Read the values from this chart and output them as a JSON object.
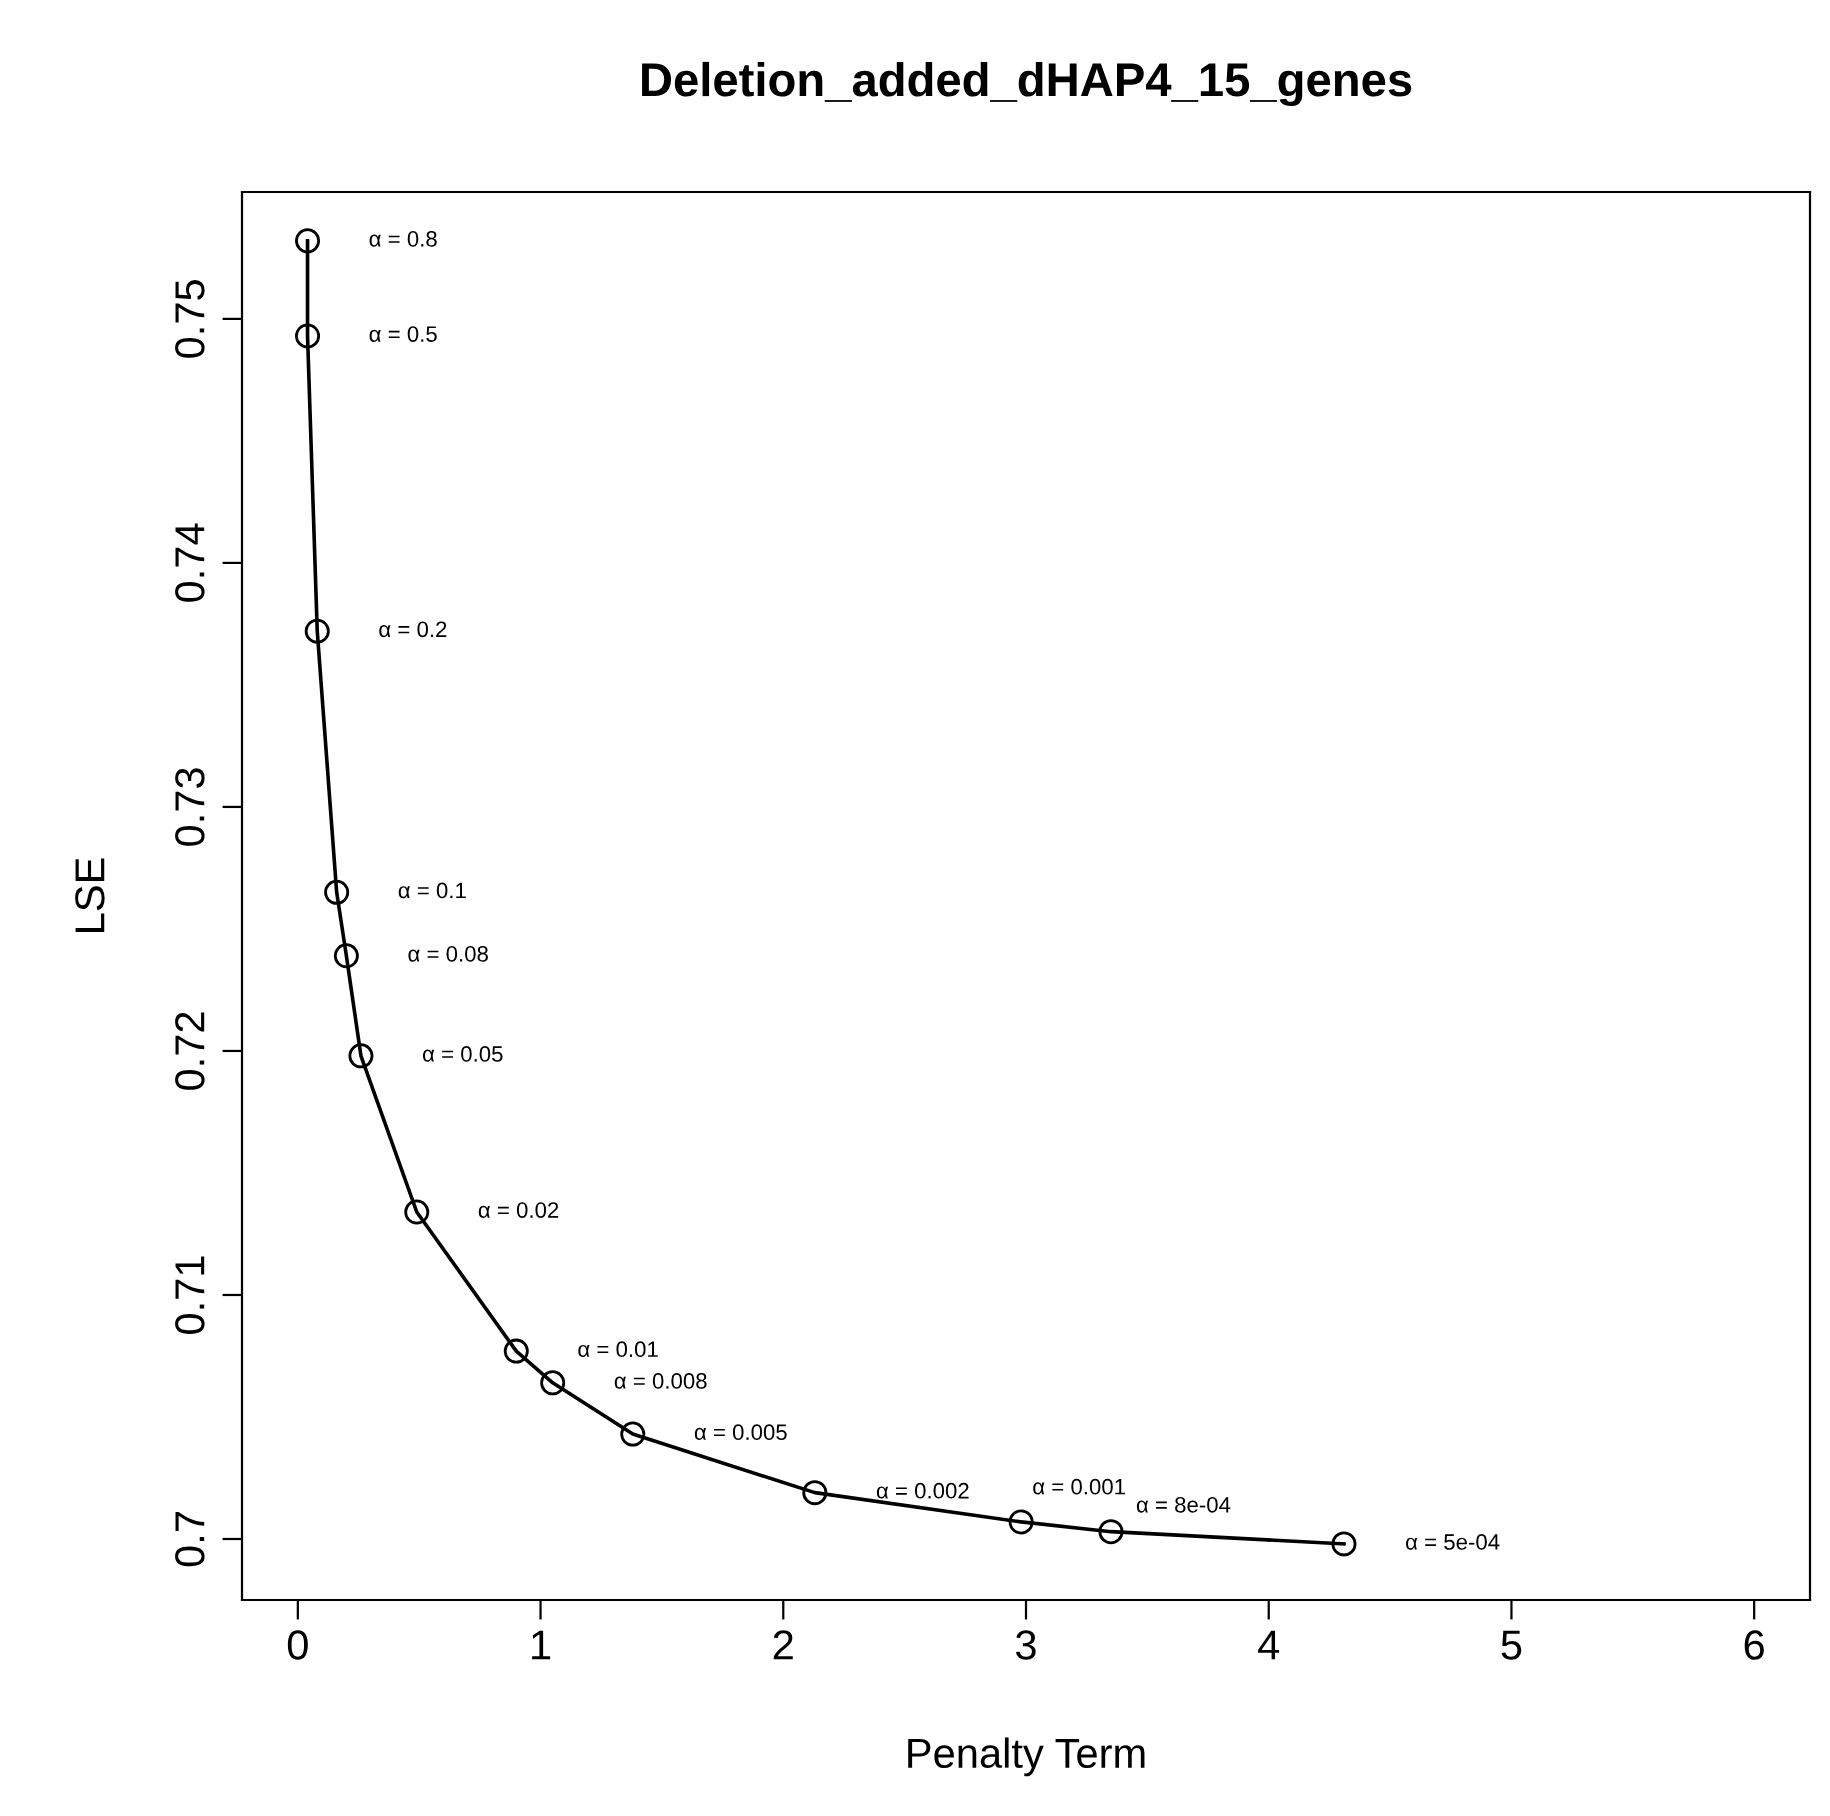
{
  "chart_data": {
    "type": "line",
    "title": "Deletion_added_dHAP4_15_genes",
    "xlabel": "Penalty Term",
    "ylabel": "LSE",
    "x": [
      0.04,
      0.04,
      0.08,
      0.16,
      0.2,
      0.26,
      0.49,
      0.9,
      1.05,
      1.38,
      2.13,
      2.98,
      3.35,
      4.31
    ],
    "series": [
      {
        "color": "#000000",
        "values": [
          0.7532,
          0.7493,
          0.7372,
          0.7265,
          0.7239,
          0.7198,
          0.7134,
          0.7077,
          0.7064,
          0.7043,
          0.7019,
          0.7007,
          0.7003,
          0.6998
        ]
      }
    ],
    "marker": "circle",
    "line_style": "solid",
    "grid": false,
    "legend": false,
    "xlim": [
      -0.23,
      6.23
    ],
    "ylim": [
      0.6975,
      0.7552
    ],
    "xticks": [
      0,
      1,
      2,
      3,
      4,
      5,
      6
    ],
    "yticks": [
      0.7,
      0.71,
      0.72,
      0.73,
      0.74,
      0.75
    ],
    "annotations": [
      {
        "text": "α = 0.8",
        "x": 0.04,
        "y": 0.7532
      },
      {
        "text": "α = 0.5",
        "x": 0.04,
        "y": 0.7493
      },
      {
        "text": "α = 0.2",
        "x": 0.08,
        "y": 0.7372
      },
      {
        "text": "α = 0.1",
        "x": 0.16,
        "y": 0.7265
      },
      {
        "text": "α = 0.08",
        "x": 0.2,
        "y": 0.7239
      },
      {
        "text": "α = 0.05",
        "x": 0.26,
        "y": 0.7198
      },
      {
        "text": "α = 0.02",
        "x": 0.49,
        "y": 0.7134
      },
      {
        "text": "α = 0.01",
        "x": 0.9,
        "y": 0.7077
      },
      {
        "text": "α = 0.008",
        "x": 1.05,
        "y": 0.7064
      },
      {
        "text": "α = 0.005",
        "x": 1.38,
        "y": 0.7043
      },
      {
        "text": "α = 0.002",
        "x": 2.13,
        "y": 0.7019
      },
      {
        "text": "α = 0.001",
        "x": 2.98,
        "y": 0.7007
      },
      {
        "text": "α = 8e-04",
        "x": 3.35,
        "y": 0.7003
      },
      {
        "text": "α = 5e-04",
        "x": 4.31,
        "y": 0.6998
      }
    ]
  }
}
